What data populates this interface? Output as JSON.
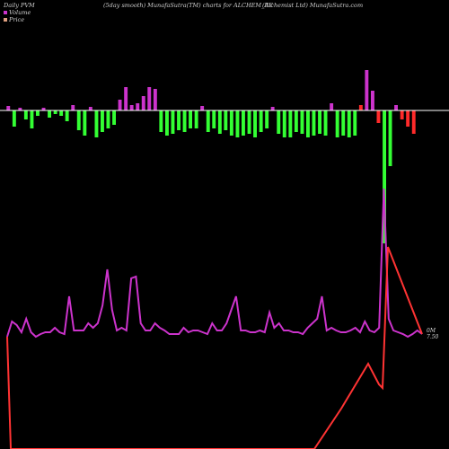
{
  "header": {
    "left": "Daily PVM",
    "center_left": "(5day smooth) MunafaSutra(TM) charts for ALCHEM_BE",
    "center_right": "(Alchemist Ltd) MunafaSutra.com"
  },
  "legend": [
    {
      "label": "Volume",
      "color": "#cc33cc"
    },
    {
      "label": "Price",
      "color": "#e0a080"
    }
  ],
  "colors": {
    "up": "#cc33cc",
    "down": "#33ff33",
    "red": "#ff2a2a",
    "pvm_line": "#cc33cc",
    "price_line": "#ff3333",
    "baseline": "#ffffff"
  },
  "chart_data": {
    "type": "bar",
    "title": "",
    "xlabel": "",
    "ylabel": "",
    "volume_bars": [
      {
        "v": 5,
        "c": "up"
      },
      {
        "v": -18,
        "c": "down"
      },
      {
        "v": 3,
        "c": "up"
      },
      {
        "v": -10,
        "c": "down"
      },
      {
        "v": -20,
        "c": "down"
      },
      {
        "v": -6,
        "c": "down"
      },
      {
        "v": 3,
        "c": "up"
      },
      {
        "v": -8,
        "c": "down"
      },
      {
        "v": -4,
        "c": "down"
      },
      {
        "v": -6,
        "c": "down"
      },
      {
        "v": -12,
        "c": "down"
      },
      {
        "v": 6,
        "c": "up"
      },
      {
        "v": -22,
        "c": "down"
      },
      {
        "v": -28,
        "c": "down"
      },
      {
        "v": 4,
        "c": "up"
      },
      {
        "v": -30,
        "c": "down"
      },
      {
        "v": -24,
        "c": "down"
      },
      {
        "v": -20,
        "c": "down"
      },
      {
        "v": -16,
        "c": "down"
      },
      {
        "v": 12,
        "c": "up"
      },
      {
        "v": 26,
        "c": "up"
      },
      {
        "v": 6,
        "c": "up"
      },
      {
        "v": 8,
        "c": "up"
      },
      {
        "v": 16,
        "c": "up"
      },
      {
        "v": 26,
        "c": "up"
      },
      {
        "v": 24,
        "c": "up"
      },
      {
        "v": -24,
        "c": "down"
      },
      {
        "v": -28,
        "c": "down"
      },
      {
        "v": -26,
        "c": "down"
      },
      {
        "v": -22,
        "c": "down"
      },
      {
        "v": -24,
        "c": "down"
      },
      {
        "v": -20,
        "c": "down"
      },
      {
        "v": -20,
        "c": "down"
      },
      {
        "v": 5,
        "c": "up"
      },
      {
        "v": -24,
        "c": "down"
      },
      {
        "v": -20,
        "c": "down"
      },
      {
        "v": -26,
        "c": "down"
      },
      {
        "v": -22,
        "c": "down"
      },
      {
        "v": -28,
        "c": "down"
      },
      {
        "v": -30,
        "c": "down"
      },
      {
        "v": -28,
        "c": "down"
      },
      {
        "v": -26,
        "c": "down"
      },
      {
        "v": -30,
        "c": "down"
      },
      {
        "v": -24,
        "c": "down"
      },
      {
        "v": -20,
        "c": "down"
      },
      {
        "v": 4,
        "c": "up"
      },
      {
        "v": -26,
        "c": "down"
      },
      {
        "v": -30,
        "c": "down"
      },
      {
        "v": -30,
        "c": "down"
      },
      {
        "v": -24,
        "c": "down"
      },
      {
        "v": -26,
        "c": "down"
      },
      {
        "v": -30,
        "c": "down"
      },
      {
        "v": -28,
        "c": "down"
      },
      {
        "v": -26,
        "c": "down"
      },
      {
        "v": -28,
        "c": "down"
      },
      {
        "v": 8,
        "c": "up"
      },
      {
        "v": -30,
        "c": "down"
      },
      {
        "v": -28,
        "c": "down"
      },
      {
        "v": -30,
        "c": "down"
      },
      {
        "v": -28,
        "c": "down"
      },
      {
        "v": 6,
        "c": "red"
      },
      {
        "v": 45,
        "c": "up"
      },
      {
        "v": 22,
        "c": "up"
      },
      {
        "v": -14,
        "c": "red"
      },
      {
        "v": -148,
        "c": "down"
      },
      {
        "v": -62,
        "c": "down"
      },
      {
        "v": 6,
        "c": "up"
      },
      {
        "v": -10,
        "c": "red"
      },
      {
        "v": -18,
        "c": "red"
      },
      {
        "v": -26,
        "c": "red"
      }
    ],
    "pvm_line": [
      375,
      358,
      362,
      370,
      355,
      370,
      375,
      372,
      370,
      370,
      365,
      370,
      372,
      330,
      368,
      368,
      368,
      360,
      365,
      360,
      340,
      300,
      345,
      368,
      365,
      368,
      310,
      308,
      360,
      368,
      368,
      360,
      365,
      368,
      372,
      372,
      372,
      365,
      370,
      368,
      368,
      370,
      372,
      360,
      368,
      368,
      360,
      345,
      330,
      368,
      368,
      370,
      370,
      368,
      370,
      348,
      365,
      360,
      368,
      368,
      370,
      370,
      372,
      365,
      360,
      355,
      330,
      368,
      365,
      368,
      370,
      370,
      368,
      365,
      370,
      358,
      368,
      370,
      365,
      210,
      355,
      368,
      370,
      372,
      375,
      372,
      368,
      372
    ],
    "price_line": [
      [
        8,
        375
      ],
      [
        12,
        500
      ],
      [
        350,
        500
      ],
      [
        380,
        455
      ],
      [
        410,
        405
      ],
      [
        422,
        428
      ],
      [
        426,
        432
      ],
      [
        432,
        275
      ],
      [
        470,
        372
      ]
    ],
    "end_labels": [
      "0M",
      "7.50"
    ]
  }
}
